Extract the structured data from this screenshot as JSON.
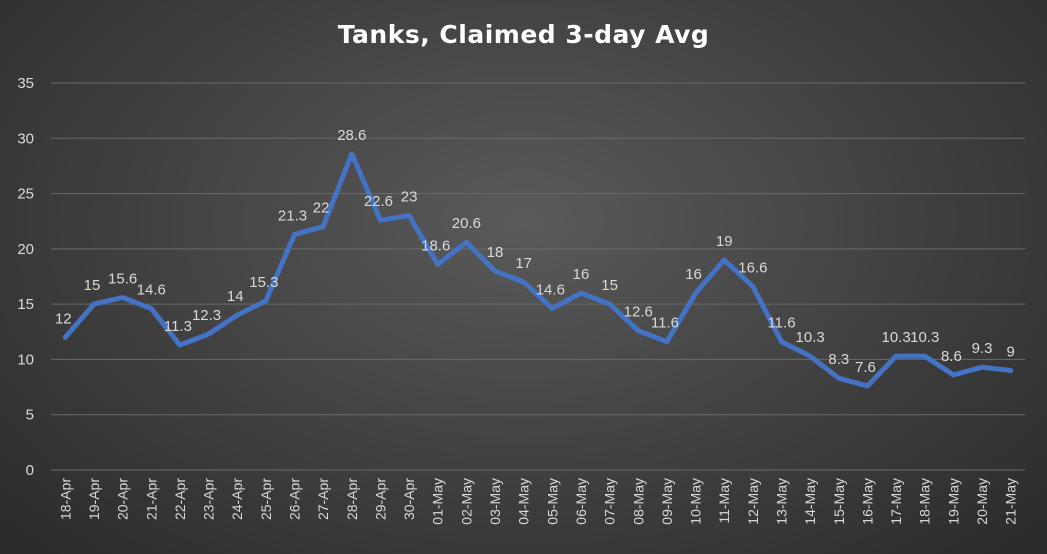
{
  "chart_data": {
    "type": "line",
    "title": "Tanks, Claimed 3-day Avg",
    "xlabel": "",
    "ylabel": "",
    "ylim": [
      0,
      35
    ],
    "yticks": [
      0,
      5,
      10,
      15,
      20,
      25,
      30,
      35
    ],
    "grid": true,
    "legend": "none",
    "line_color": "#4472c4",
    "categories": [
      "18-Apr",
      "19-Apr",
      "20-Apr",
      "21-Apr",
      "22-Apr",
      "23-Apr",
      "24-Apr",
      "25-Apr",
      "26-Apr",
      "27-Apr",
      "28-Apr",
      "29-Apr",
      "30-Apr",
      "01-May",
      "02-May",
      "03-May",
      "04-May",
      "05-May",
      "06-May",
      "07-May",
      "08-May",
      "09-May",
      "10-May",
      "11-May",
      "12-May",
      "13-May",
      "14-May",
      "15-May",
      "16-May",
      "17-May",
      "18-May",
      "19-May",
      "20-May",
      "21-May"
    ],
    "series": [
      {
        "values": [
          12,
          15,
          15.6,
          14.6,
          11.3,
          12.3,
          14,
          15.3,
          21.3,
          22,
          28.6,
          22.6,
          23,
          18.6,
          20.6,
          18,
          17,
          14.6,
          16,
          15,
          12.6,
          11.6,
          16,
          19,
          16.6,
          11.6,
          10.3,
          8.3,
          7.6,
          10.3,
          10.3,
          8.6,
          9.3,
          9
        ]
      }
    ]
  }
}
